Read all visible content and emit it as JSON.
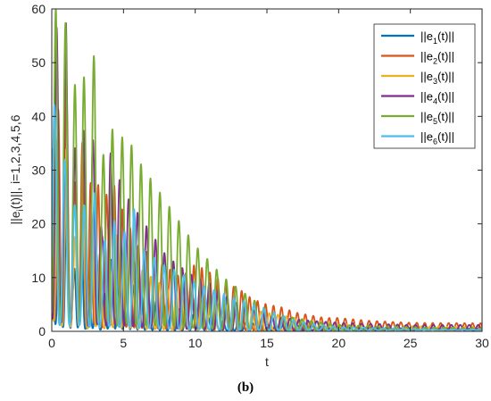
{
  "caption": "(b)",
  "chart_data": {
    "type": "line",
    "xlabel": "t",
    "ylabel": "||e_i(t)||, i=1,2,3,4,5,6",
    "xlim": [
      0,
      30
    ],
    "ylim": [
      0,
      60
    ],
    "xticks": [
      0,
      5,
      10,
      15,
      20,
      25,
      30
    ],
    "yticks": [
      0,
      10,
      20,
      30,
      40,
      50,
      60
    ],
    "grid": false,
    "legend_position": "top-right",
    "series": [
      {
        "name": "||e1(t)||",
        "sub": "1",
        "color": "#0072BD",
        "points": [
          [
            0,
            26
          ],
          [
            0.3,
            34
          ],
          [
            0.6,
            14
          ],
          [
            1,
            26
          ],
          [
            1.5,
            10
          ],
          [
            2,
            22
          ],
          [
            2.5,
            6
          ],
          [
            3,
            18
          ],
          [
            3.5,
            4
          ],
          [
            4,
            14
          ],
          [
            5,
            10
          ],
          [
            6,
            8
          ],
          [
            7,
            6
          ],
          [
            8,
            5
          ],
          [
            9,
            4
          ],
          [
            10,
            3
          ],
          [
            12,
            2
          ],
          [
            15,
            1.2
          ],
          [
            20,
            0.8
          ],
          [
            25,
            0.6
          ],
          [
            30,
            0.5
          ]
        ]
      },
      {
        "name": "||e2(t)||",
        "sub": "2",
        "color": "#D95319",
        "points": [
          [
            0,
            45
          ],
          [
            0.3,
            55
          ],
          [
            0.6,
            30
          ],
          [
            1,
            48
          ],
          [
            1.5,
            25
          ],
          [
            2,
            40
          ],
          [
            2.5,
            22
          ],
          [
            3,
            36
          ],
          [
            3.5,
            18
          ],
          [
            4,
            30
          ],
          [
            5,
            22
          ],
          [
            6,
            16
          ],
          [
            7,
            14
          ],
          [
            8,
            12
          ],
          [
            9,
            10
          ],
          [
            10,
            12.5
          ],
          [
            11,
            11
          ],
          [
            12,
            9
          ],
          [
            13,
            8
          ],
          [
            14,
            6
          ],
          [
            15,
            5
          ],
          [
            16,
            4.5
          ],
          [
            17,
            3.5
          ],
          [
            18,
            3
          ],
          [
            19,
            2.5
          ],
          [
            20,
            2.5
          ],
          [
            22,
            2
          ],
          [
            25,
            1.6
          ],
          [
            30,
            1.5
          ]
        ]
      },
      {
        "name": "||e3(t)||",
        "sub": "3",
        "color": "#EDB120",
        "points": [
          [
            0,
            50
          ],
          [
            0.3,
            44
          ],
          [
            0.6,
            22
          ],
          [
            1,
            34
          ],
          [
            1.5,
            14
          ],
          [
            2,
            30
          ],
          [
            2.5,
            12
          ],
          [
            3,
            26
          ],
          [
            3.5,
            10
          ],
          [
            4,
            20
          ],
          [
            5,
            16
          ],
          [
            6,
            12
          ],
          [
            7,
            10
          ],
          [
            8,
            8
          ],
          [
            9,
            7
          ],
          [
            10,
            6
          ],
          [
            12,
            5
          ],
          [
            14,
            4
          ],
          [
            16,
            3
          ],
          [
            18,
            2
          ],
          [
            20,
            1.5
          ],
          [
            25,
            1
          ],
          [
            30,
            0.8
          ]
        ]
      },
      {
        "name": "||e4(t)||",
        "sub": "4",
        "color": "#7E2F8E",
        "points": [
          [
            0,
            58
          ],
          [
            0.3,
            60
          ],
          [
            0.6,
            38
          ],
          [
            1,
            58
          ],
          [
            1.5,
            30
          ],
          [
            2,
            48
          ],
          [
            2.5,
            24
          ],
          [
            3,
            40
          ],
          [
            3.5,
            18
          ],
          [
            4,
            34
          ],
          [
            5,
            26
          ],
          [
            6,
            22
          ],
          [
            7,
            18
          ],
          [
            8,
            14
          ],
          [
            9,
            12
          ],
          [
            10,
            10
          ],
          [
            11,
            9
          ],
          [
            12,
            7
          ],
          [
            13,
            5
          ],
          [
            14,
            4
          ],
          [
            15,
            3
          ],
          [
            16,
            2.5
          ],
          [
            18,
            2
          ],
          [
            20,
            1.6
          ],
          [
            25,
            1.2
          ],
          [
            30,
            1.2
          ]
        ]
      },
      {
        "name": "||e5(t)||",
        "sub": "5",
        "color": "#77AC30",
        "points": [
          [
            0,
            60
          ],
          [
            0.3,
            60
          ],
          [
            0.6,
            40
          ],
          [
            1,
            60
          ],
          [
            1.5,
            42
          ],
          [
            2,
            60
          ],
          [
            2.5,
            35
          ],
          [
            3,
            54
          ],
          [
            3.5,
            30
          ],
          [
            4,
            46
          ],
          [
            4.5,
            28
          ],
          [
            5,
            38
          ],
          [
            6,
            32
          ],
          [
            7,
            28
          ],
          [
            8,
            24
          ],
          [
            9,
            20
          ],
          [
            10,
            16
          ],
          [
            11,
            13
          ],
          [
            12,
            10
          ],
          [
            13,
            8
          ],
          [
            14,
            6
          ],
          [
            15,
            4
          ],
          [
            16,
            3
          ],
          [
            17,
            2.5
          ],
          [
            18,
            2
          ],
          [
            20,
            1.2
          ],
          [
            25,
            0.8
          ],
          [
            30,
            0.6
          ]
        ]
      },
      {
        "name": "||e6(t)||",
        "sub": "6",
        "color": "#4DBEEE",
        "points": [
          [
            0,
            46
          ],
          [
            0.3,
            40
          ],
          [
            0.6,
            26
          ],
          [
            1,
            34
          ],
          [
            1.5,
            22
          ],
          [
            2,
            30
          ],
          [
            2.5,
            18
          ],
          [
            3,
            26
          ],
          [
            3.5,
            14
          ],
          [
            4,
            22
          ],
          [
            5,
            18
          ],
          [
            5.7,
            24
          ],
          [
            6,
            16
          ],
          [
            7,
            14
          ],
          [
            8,
            12
          ],
          [
            9,
            11
          ],
          [
            10,
            9
          ],
          [
            11,
            8
          ],
          [
            12,
            7
          ],
          [
            13,
            6
          ],
          [
            14,
            5
          ],
          [
            15,
            4
          ],
          [
            16,
            3
          ],
          [
            17,
            2
          ],
          [
            18,
            1.5
          ],
          [
            20,
            0.8
          ],
          [
            25,
            0.5
          ],
          [
            30,
            0.3
          ]
        ]
      }
    ]
  }
}
